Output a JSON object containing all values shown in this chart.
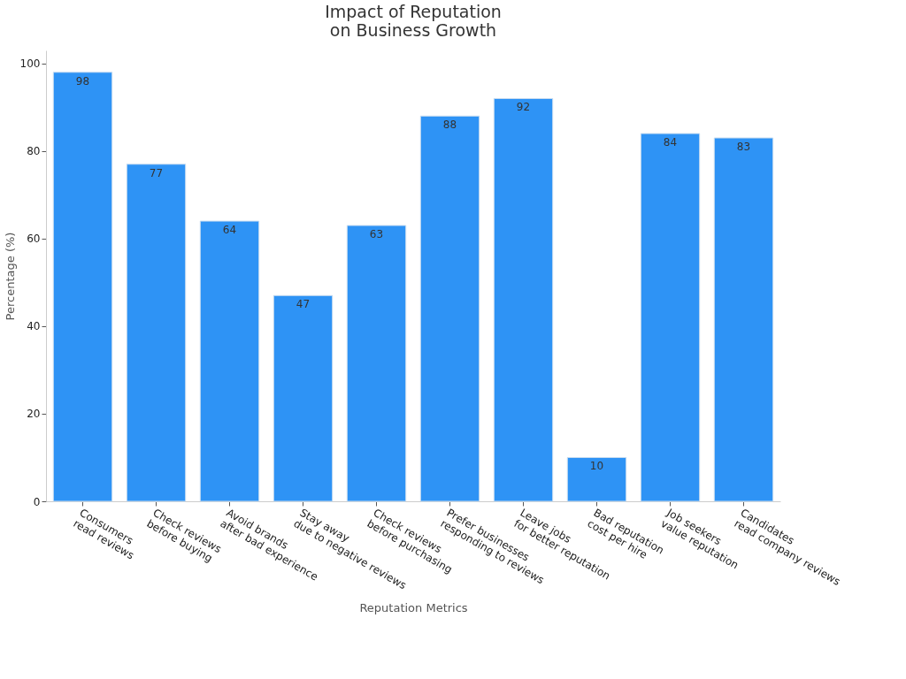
{
  "chart_data": {
    "type": "bar",
    "title": "Impact of Reputation\non Business Growth",
    "xlabel": "Reputation Metrics",
    "ylabel": "Percentage (%)",
    "categories": [
      "Consumers\nread reviews",
      "Check reviews\nbefore buying",
      "Avoid brands\nafter bad experience",
      "Stay away\ndue to negative reviews",
      "Check reviews\nbefore purchasing",
      "Prefer businesses\nresponding to reviews",
      "Leave jobs\nfor better reputation",
      "Bad reputation\ncost per hire",
      "Job seekers\nvalue reputation",
      "Candidates\nread company reviews"
    ],
    "values": [
      98,
      77,
      64,
      47,
      63,
      88,
      92,
      10,
      84,
      83
    ],
    "color": "#2e93f5",
    "ylim": [
      0,
      103
    ],
    "yticks": [
      0,
      20,
      40,
      60,
      80,
      100
    ],
    "grid": false,
    "data_labels": true
  }
}
